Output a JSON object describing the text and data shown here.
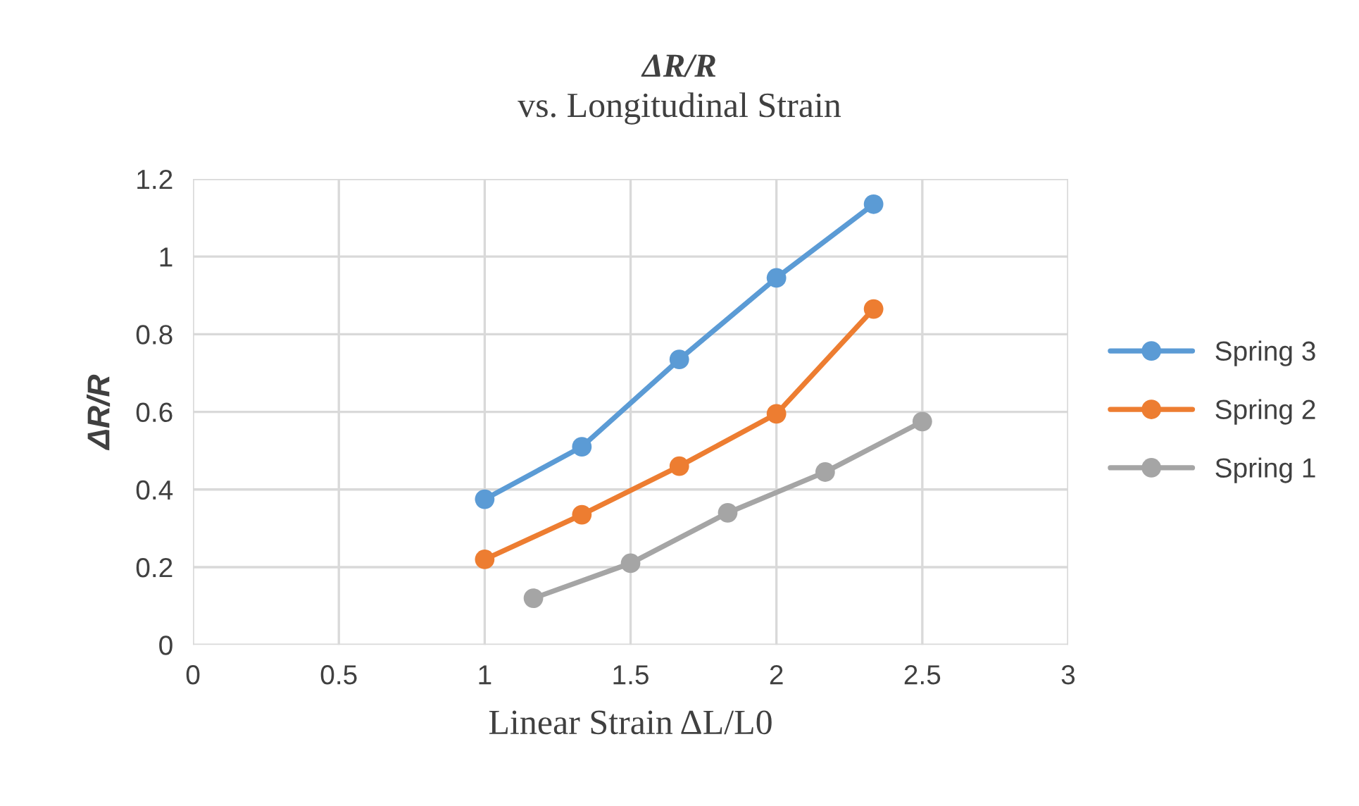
{
  "chart_data": {
    "type": "line",
    "title": "ΔR/R",
    "subtitle": "vs. Longitudinal Strain",
    "xlabel": "Linear Strain ΔL/L0",
    "ylabel": "ΔR/R",
    "series": [
      {
        "name": "Spring 3",
        "color": "#5b9bd5",
        "x": [
          1,
          1.333,
          1.667,
          2,
          2.333
        ],
        "values": [
          0.375,
          0.51,
          0.735,
          0.945,
          1.135
        ]
      },
      {
        "name": "Spring 2",
        "color": "#ed7d31",
        "x": [
          1,
          1.333,
          1.667,
          2,
          2.333
        ],
        "values": [
          0.22,
          0.335,
          0.46,
          0.595,
          0.865
        ]
      },
      {
        "name": "Spring 1",
        "color": "#a5a5a5",
        "x": [
          1.167,
          1.5,
          1.833,
          2.167,
          2.5
        ],
        "values": [
          0.12,
          0.21,
          0.34,
          0.445,
          0.575
        ]
      }
    ],
    "xlim": [
      0,
      3
    ],
    "xticks": [
      0,
      0.5,
      1,
      1.5,
      2,
      2.5,
      3
    ],
    "ylim": [
      0,
      1.2
    ],
    "yticks": [
      0,
      0.2,
      0.4,
      0.6,
      0.8,
      1,
      1.2
    ],
    "grid": true,
    "legend": "right",
    "marker": "circle",
    "line_style": "solid"
  }
}
